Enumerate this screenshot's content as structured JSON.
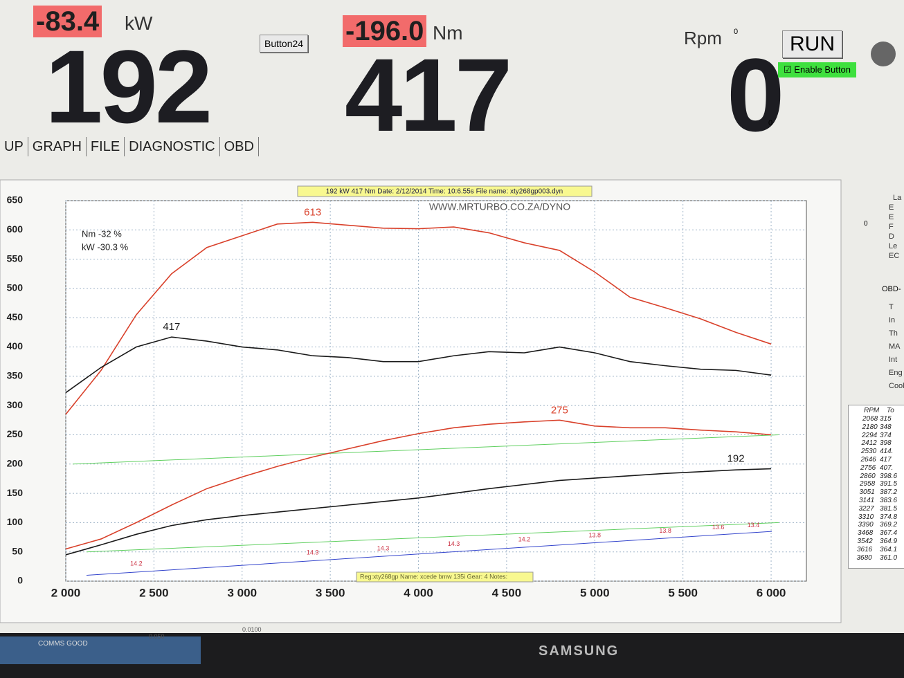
{
  "header": {
    "power_delta": "-83.4",
    "power_unit": "kW",
    "power": "192",
    "button": "Button24",
    "torque_delta": "-196.0",
    "torque_unit": "Nm",
    "torque": "417",
    "rpm_label": "Rpm",
    "rpm_small_top": "0",
    "rpm": "0",
    "rpm_small_bottom": "0",
    "run": "RUN",
    "enable": "Enable Button"
  },
  "tabs": [
    "UP",
    "GRAPH",
    "FILE",
    "DIAGNOSTIC",
    "OBD"
  ],
  "chart_data": {
    "type": "line",
    "info_bar": "192 kW   417 Nm     Date: 2/12/2014     Time: 10:6.55s     File name: xty268gp003.dyn",
    "watermark": "WWW.MRTURBO.CO.ZA/DYNO",
    "notes": [
      "Nm -32 %",
      "kW -30.3 %"
    ],
    "footer": "Reg:xty268gp  Name: xcede   bmw 135i  Gear: 4  Notes:",
    "x": [
      2000,
      2200,
      2400,
      2600,
      2800,
      3000,
      3200,
      3400,
      3600,
      3800,
      4000,
      4200,
      4400,
      4600,
      4800,
      5000,
      5200,
      5400,
      5600,
      5800,
      6000
    ],
    "series": [
      {
        "color": "#d9412b",
        "values": [
          285,
          360,
          455,
          525,
          570,
          590,
          610,
          613,
          608,
          603,
          602,
          605,
          595,
          578,
          565,
          528,
          485,
          467,
          448,
          425,
          405
        ]
      },
      {
        "color": "#1a1a1a",
        "values": [
          322,
          365,
          400,
          417,
          410,
          400,
          395,
          385,
          382,
          375,
          375,
          385,
          392,
          390,
          400,
          390,
          375,
          368,
          362,
          360,
          352
        ]
      },
      {
        "color": "#d9412b",
        "values": [
          55,
          72,
          100,
          130,
          158,
          178,
          196,
          212,
          226,
          240,
          252,
          262,
          268,
          272,
          275,
          265,
          262,
          262,
          258,
          255,
          250
        ]
      },
      {
        "color": "#1a1a1a",
        "values": [
          45,
          62,
          80,
          95,
          105,
          112,
          118,
          124,
          130,
          136,
          142,
          150,
          158,
          165,
          172,
          176,
          180,
          184,
          187,
          190,
          192
        ]
      }
    ],
    "annotations": [
      {
        "value": 613,
        "x": 3400,
        "color": "#d9412b"
      },
      {
        "value": 417,
        "x": 2600,
        "color": "#1a1a1a"
      },
      {
        "value": 275,
        "x": 4800,
        "color": "#d9412b"
      },
      {
        "value": 192,
        "x": 5800,
        "color": "#1a1a1a"
      }
    ],
    "afr": {
      "x": [
        2400,
        3400,
        3800,
        4200,
        4600,
        5000,
        5400,
        5700,
        5900
      ],
      "values": [
        14.2,
        14.3,
        14.3,
        14.3,
        14.2,
        13.8,
        13.8,
        13.6,
        13.4
      ]
    },
    "xlim": [
      2000,
      6200
    ],
    "ylim": [
      0,
      650
    ],
    "xticks": [
      {
        "value": 2000,
        "label": "2 000"
      },
      {
        "value": 2500,
        "label": "2 500"
      },
      {
        "value": 3000,
        "label": "3 000"
      },
      {
        "value": 3500,
        "label": "3 500"
      },
      {
        "value": 4000,
        "label": "4 000"
      },
      {
        "value": 4500,
        "label": "4 500"
      },
      {
        "value": 5000,
        "label": "5 000"
      },
      {
        "value": 5500,
        "label": "5 500"
      },
      {
        "value": 6000,
        "label": "6 000"
      }
    ],
    "yticks": [
      0,
      50,
      100,
      150,
      200,
      250,
      300,
      350,
      400,
      450,
      500,
      550,
      600,
      650
    ],
    "grid": true
  },
  "side": {
    "labels": [
      "La",
      "E",
      "E",
      "F",
      "D",
      "Le",
      "EC"
    ],
    "obd": "OBD-",
    "obd_items": [
      "T",
      "In",
      "Th",
      "MA",
      "Int",
      "Eng",
      "Cool"
    ],
    "zero": "0"
  },
  "table": {
    "headers": [
      "RPM",
      "To"
    ],
    "rows": [
      [
        "2068",
        "315"
      ],
      [
        "2180",
        "348"
      ],
      [
        "2294",
        "374"
      ],
      [
        "2412",
        "398"
      ],
      [
        "2530",
        "414."
      ],
      [
        "2646",
        "417"
      ],
      [
        "2756",
        "407."
      ],
      [
        "2860",
        "398.6"
      ],
      [
        "2958",
        "391.5"
      ],
      [
        "3051",
        "387.2"
      ],
      [
        "3141",
        "383.6"
      ],
      [
        "3227",
        "381.5"
      ],
      [
        "3310",
        "374.8"
      ],
      [
        "3390",
        "369.2"
      ],
      [
        "3468",
        "367.4"
      ],
      [
        "3542",
        "364.9"
      ],
      [
        "3616",
        "364.1"
      ],
      [
        "3680",
        "361.0"
      ]
    ]
  },
  "status": {
    "comms": "COMMS GOOD",
    "v1": "0.050",
    "v2": "0.0100",
    "brand": "SAMSUNG"
  }
}
